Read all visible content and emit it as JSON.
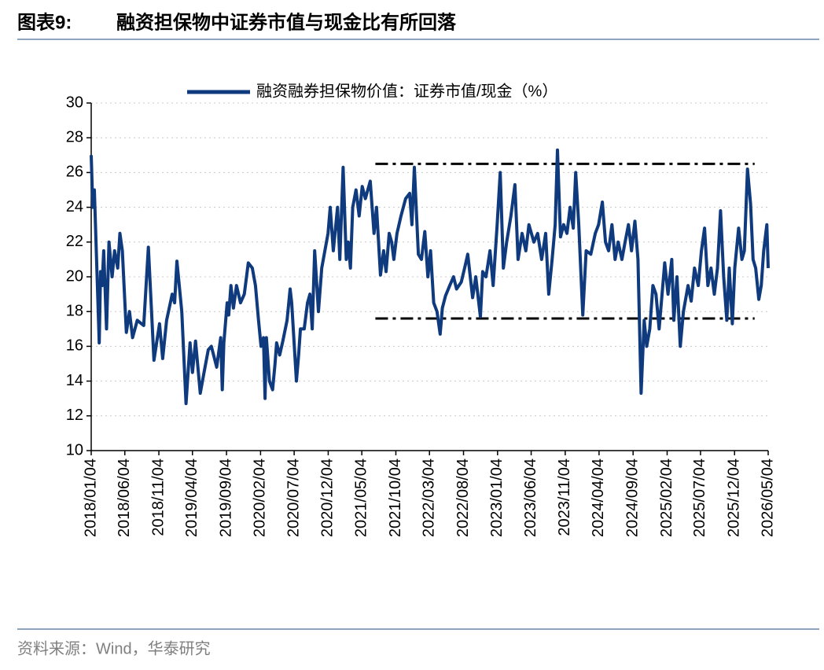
{
  "chart_data": {
    "type": "line",
    "title_label": "图表9:",
    "title": "融资担保物中证券市值与现金比有所回落",
    "source": "资料来源：Wind，华泰研究",
    "x": [
      "2018/01/04",
      "2018/01/11",
      "2018/01/18",
      "2018/02/09",
      "2018/02/15",
      "2018/02/22",
      "2018/03/01",
      "2018/03/14",
      "2018/03/25",
      "2018/04/08",
      "2018/04/19",
      "2018/05/03",
      "2018/05/13",
      "2018/05/24",
      "2018/06/11",
      "2018/06/25",
      "2018/07/09",
      "2018/07/30",
      "2018/08/28",
      "2018/09/18",
      "2018/10/13",
      "2018/11/07",
      "2018/11/21",
      "2018/12/09",
      "2019/01/03",
      "2019/01/14",
      "2019/01/24",
      "2019/02/15",
      "2019/03/06",
      "2019/03/24",
      "2019/04/04",
      "2019/04/18",
      "2019/05/09",
      "2019/05/26",
      "2019/06/14",
      "2019/06/28",
      "2019/07/22",
      "2019/08/09",
      "2019/08/16",
      "2019/08/23",
      "2019/09/07",
      "2019/09/14",
      "2019/09/24",
      "2019/10/05",
      "2019/10/19",
      "2019/11/06",
      "2019/11/23",
      "2019/12/11",
      "2019/12/29",
      "2020/01/12",
      "2020/01/26",
      "2020/02/06",
      "2020/02/17",
      "2020/02/24",
      "2020/03/01",
      "2020/03/15",
      "2020/03/29",
      "2020/04/09",
      "2020/04/16",
      "2020/04/30",
      "2020/05/14",
      "2020/06/02",
      "2020/06/16",
      "2020/06/23",
      "2020/07/14",
      "2020/07/24",
      "2020/08/01",
      "2020/08/18",
      "2020/09/02",
      "2020/09/13",
      "2020/09/23",
      "2020/10/04",
      "2020/10/21",
      "2020/11/05",
      "2020/11/19",
      "2020/12/03",
      "2020/12/13",
      "2020/12/27",
      "2021/01/15",
      "2021/01/25",
      "2021/02/09",
      "2021/02/23",
      "2021/03/04",
      "2021/03/14",
      "2021/03/24",
      "2021/04/08",
      "2021/04/22",
      "2021/05/06",
      "2021/05/20",
      "2021/06/11",
      "2021/06/28",
      "2021/07/09",
      "2021/07/27",
      "2021/08/10",
      "2021/08/21",
      "2021/09/04",
      "2021/09/15",
      "2021/09/25",
      "2021/10/09",
      "2021/10/27",
      "2021/11/17",
      "2021/12/05",
      "2021/12/15",
      "2021/12/26",
      "2022/01/13",
      "2022/01/27",
      "2022/02/11",
      "2022/02/25",
      "2022/03/09",
      "2022/03/23",
      "2022/04/07",
      "2022/04/21",
      "2022/05/01",
      "2022/05/15",
      "2022/06/03",
      "2022/06/20",
      "2022/07/04",
      "2022/07/25",
      "2022/08/09",
      "2022/08/23",
      "2022/09/14",
      "2022/09/28",
      "2022/10/19",
      "2022/10/29",
      "2022/11/13",
      "2022/12/01",
      "2022/12/15",
      "2023/01/02",
      "2023/01/16",
      "2023/01/30",
      "2023/02/14",
      "2023/03/05",
      "2023/03/23",
      "2023/04/06",
      "2023/04/24",
      "2023/05/11",
      "2023/05/25",
      "2023/06/16",
      "2023/07/03",
      "2023/07/21",
      "2023/08/08",
      "2023/08/22",
      "2023/09/06",
      "2023/09/20",
      "2023/09/30",
      "2023/10/14",
      "2023/10/28",
      "2023/11/12",
      "2023/11/26",
      "2023/12/10",
      "2023/12/21",
      "2024/01/04",
      "2024/01/22",
      "2024/02/06",
      "2024/02/27",
      "2024/03/18",
      "2024/04/02",
      "2024/04/19",
      "2024/05/03",
      "2024/05/17",
      "2024/06/01",
      "2024/06/15",
      "2024/06/29",
      "2024/07/16",
      "2024/07/30",
      "2024/08/14",
      "2024/08/28",
      "2024/09/12",
      "2024/09/26",
      "2024/10/10",
      "2024/10/24",
      "2024/11/04",
      "2024/11/18",
      "2024/12/02",
      "2024/12/16",
      "2024/12/30",
      "2025/01/24",
      "2025/02/08",
      "2025/02/25",
      "2025/03/06",
      "2025/03/20",
      "2025/04/04",
      "2025/04/18",
      "2025/05/09",
      "2025/05/23",
      "2025/06/07",
      "2025/06/24",
      "2025/07/08",
      "2025/07/22",
      "2025/08/06",
      "2025/08/20",
      "2025/09/04",
      "2025/09/18",
      "2025/10/02",
      "2025/10/16",
      "2025/10/30",
      "2025/11/10",
      "2025/11/24",
      "2025/12/05",
      "2025/12/22",
      "2026/01/06",
      "2026/01/17",
      "2026/01/31",
      "2026/02/14",
      "2026/02/25",
      "2026/03/09",
      "2026/03/23",
      "2026/04/03",
      "2026/04/14",
      "2026/04/28",
      "2026/05/04"
    ],
    "series": [
      {
        "name": "融资融券担保物价值：证券市值/现金（%）",
        "color": "#0f3a7d",
        "values": [
          27,
          24,
          25,
          16.2,
          20.3,
          19.5,
          21.5,
          17,
          22,
          20,
          21.5,
          20.5,
          22.5,
          21.5,
          16.8,
          18,
          16.5,
          17.5,
          17.2,
          21.7,
          15.2,
          17.3,
          15.3,
          17.5,
          19,
          18.5,
          20.9,
          18,
          12.7,
          16.2,
          14.5,
          16.3,
          13.3,
          14.5,
          15.8,
          16,
          14.8,
          16.5,
          13.5,
          16.2,
          18.5,
          17.8,
          19.5,
          18.2,
          19.5,
          18.5,
          19,
          20.8,
          20.5,
          19.5,
          17.5,
          16,
          16.5,
          13,
          16.5,
          14,
          13.5,
          15,
          16.2,
          15.5,
          16.3,
          17.5,
          19.3,
          18.5,
          14,
          15.5,
          17,
          17,
          18.5,
          19,
          17,
          21.5,
          18,
          20.5,
          21.5,
          22.5,
          24,
          21.5,
          24,
          21,
          26.3,
          21,
          22,
          20.5,
          24,
          25,
          23.5,
          25.2,
          24.5,
          25.5,
          22.5,
          24,
          20.1,
          21.5,
          20.3,
          22.5,
          22,
          21,
          22.5,
          23.5,
          24.5,
          24.8,
          23,
          26.3,
          21.3,
          21,
          22.6,
          20,
          21.5,
          18.5,
          18,
          16.7,
          18.2,
          18.9,
          19.5,
          20,
          19.3,
          19.7,
          20.5,
          21.3,
          18.8,
          20,
          17.7,
          20.3,
          20,
          21.5,
          19.5,
          23,
          26,
          20.5,
          22,
          23.5,
          25.3,
          21,
          22.5,
          21.5,
          23,
          22,
          22.5,
          21,
          22.5,
          19,
          21,
          23,
          27.3,
          22.3,
          23,
          22.5,
          24,
          22.8,
          26,
          23,
          17.8,
          21.5,
          21.3,
          22.5,
          23,
          24.3,
          22,
          21.5,
          23,
          21,
          22,
          21,
          22,
          23,
          21.5,
          23.2,
          21,
          13.3,
          17.5,
          16,
          17,
          19.5,
          19,
          17,
          20.8,
          19,
          21,
          17.5,
          20,
          16,
          18,
          19.5,
          18.6,
          20.5,
          19.5,
          21.5,
          22.8,
          19.5,
          20.5,
          19,
          20.5,
          23.8,
          20,
          17.5,
          20.5,
          17.3,
          20.5,
          22.8,
          21,
          21.5,
          26.2,
          24.2,
          21,
          20.5,
          18.7,
          19.5,
          21.5,
          23,
          20.5
        ]
      }
    ],
    "reference_lines": [
      {
        "y": 26.5,
        "x": [
          "2021/07/04",
          "2026/03/04"
        ],
        "color": "#000000"
      },
      {
        "y": 17.6,
        "x": [
          "2021/07/04",
          "2026/03/04"
        ],
        "color": "#000000"
      }
    ],
    "xlim": [
      "2018/01/04",
      "2026/05/04"
    ],
    "xticks": [
      "2018/01/04",
      "2018/06/04",
      "2018/11/04",
      "2019/04/04",
      "2019/09/04",
      "2020/02/04",
      "2020/07/04",
      "2020/12/04",
      "2021/05/04",
      "2021/10/04",
      "2022/03/04",
      "2022/08/04",
      "2023/01/04",
      "2023/06/04",
      "2023/11/04",
      "2024/04/04",
      "2024/09/04",
      "2025/02/04",
      "2025/07/04",
      "2025/12/04",
      "2026/05/04"
    ],
    "ylim": [
      10,
      30
    ],
    "yticks": [
      10,
      12,
      14,
      16,
      18,
      20,
      22,
      24,
      26,
      28,
      30
    ],
    "grid": true,
    "legend": "top"
  }
}
